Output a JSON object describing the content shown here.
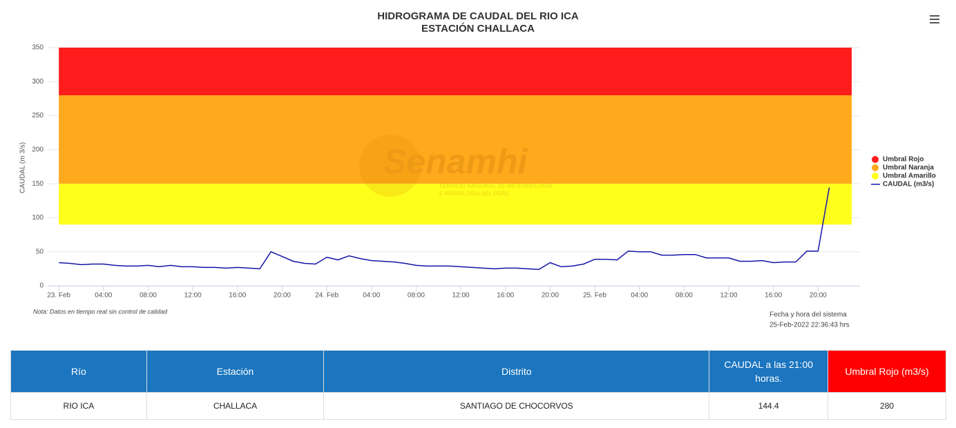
{
  "chart_data": {
    "type": "line",
    "title": "HIDROGRAMA DE CAUDAL DEL RIO ICA",
    "subtitle": "ESTACIÓN CHALLACA",
    "y_label": "CAUDAL (m 3/s)",
    "ylim": [
      0,
      350
    ],
    "yticks": [
      0,
      50,
      100,
      150,
      200,
      250,
      300,
      350
    ],
    "grid": true,
    "xlim": [
      -1,
      72
    ],
    "xticks": [
      {
        "value": 0,
        "label": "23. Feb"
      },
      {
        "value": 4,
        "label": "04:00"
      },
      {
        "value": 8,
        "label": "08:00"
      },
      {
        "value": 12,
        "label": "12:00"
      },
      {
        "value": 16,
        "label": "16:00"
      },
      {
        "value": 20,
        "label": "20:00"
      },
      {
        "value": 24,
        "label": "24. Feb"
      },
      {
        "value": 28,
        "label": "04:00"
      },
      {
        "value": 32,
        "label": "08:00"
      },
      {
        "value": 36,
        "label": "12:00"
      },
      {
        "value": 40,
        "label": "16:00"
      },
      {
        "value": 44,
        "label": "20:00"
      },
      {
        "value": 48,
        "label": "25. Feb"
      },
      {
        "value": 52,
        "label": "04:00"
      },
      {
        "value": 56,
        "label": "08:00"
      },
      {
        "value": 60,
        "label": "12:00"
      },
      {
        "value": 64,
        "label": "16:00"
      },
      {
        "value": 68,
        "label": "20:00"
      }
    ],
    "bands": [
      {
        "name": "Umbral Rojo",
        "color": "#ff1c1c",
        "from": 280,
        "to": 350
      },
      {
        "name": "Umbral Naranja",
        "color": "#ffa91c",
        "from": 150,
        "to": 280
      },
      {
        "name": "Umbral Amarillo",
        "color": "#ffff1c",
        "from": 90,
        "to": 150
      }
    ],
    "x": [
      0,
      1,
      2,
      3,
      4,
      5,
      6,
      7,
      8,
      9,
      10,
      11,
      12,
      13,
      14,
      15,
      16,
      17,
      18,
      19,
      20,
      21,
      22,
      23,
      24,
      25,
      26,
      27,
      28,
      29,
      30,
      31,
      32,
      33,
      34,
      35,
      36,
      37,
      38,
      39,
      40,
      41,
      42,
      43,
      44,
      45,
      46,
      47,
      48,
      49,
      50,
      51,
      52,
      53,
      54,
      55,
      56,
      57,
      58,
      59,
      60,
      61,
      62,
      63,
      64,
      65,
      66,
      67,
      68,
      69
    ],
    "series": [
      {
        "name": "CAUDAL (m3/s)",
        "color": "#1414a8",
        "values": [
          34,
          33,
          31,
          32,
          32,
          30,
          29,
          29,
          30,
          28,
          30,
          28,
          28,
          27,
          27,
          26,
          27,
          26,
          25,
          50,
          43,
          36,
          33,
          32,
          42,
          38,
          44,
          40,
          37,
          36,
          35,
          33,
          30,
          29,
          29,
          29,
          28,
          27,
          26,
          25,
          26,
          26,
          25,
          24,
          34,
          28,
          29,
          32,
          39,
          39,
          38,
          51,
          50,
          50,
          45,
          45,
          46,
          46,
          41,
          41,
          41,
          36,
          36,
          37,
          34,
          35,
          35,
          51,
          51,
          144.4
        ]
      }
    ],
    "note": "Nota: Datos en tiempo real sin control de calidad",
    "system_time_label": "Fecha y hora del sistema",
    "system_time": "25-Feb-2022 22:36:43 hrs",
    "watermark": {
      "brand": "Senamhi",
      "line1": "SERVICIO NACIONAL DE METEOROLOGIA",
      "line2": "E HIDROLOGIA DEL PERU"
    }
  },
  "table": {
    "headers": [
      "Río",
      "Estación",
      "Distrito",
      "CAUDAL a las 21:00 horas.",
      "Umbral Rojo (m3/s)"
    ],
    "rows": [
      [
        "RIO ICA",
        "CHALLACA",
        "SANTIAGO DE CHOCORVOS",
        144.4,
        280
      ]
    ]
  }
}
